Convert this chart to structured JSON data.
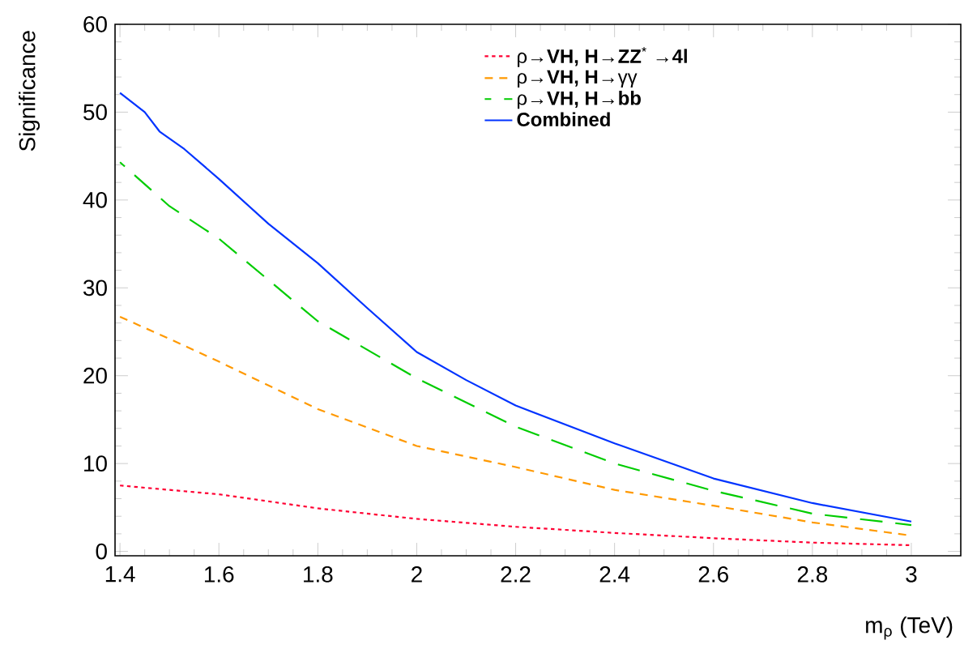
{
  "chart_data": {
    "type": "line",
    "xlabel": "m$_{ρ}$ (TeV)",
    "ylabel": "Significance",
    "xlim": [
      1.39,
      3.1
    ],
    "ylim": [
      -0.5,
      60
    ],
    "xticks": [
      1.4,
      1.6,
      1.8,
      2,
      2.2,
      2.4,
      2.6,
      2.8,
      3
    ],
    "yticks": [
      0,
      10,
      20,
      30,
      40,
      50,
      60
    ],
    "legend": "top right",
    "marker": "none",
    "grid": false,
    "x": [
      1.4,
      1.5,
      1.6,
      1.8,
      2.0,
      2.2,
      2.4,
      2.6,
      2.8,
      3.0
    ],
    "series": [
      {
        "name": "ρ→**VH, H**→**ZZ**$^{*}$ →**4l**",
        "color": "#ff0033",
        "line_style": "dotted",
        "values": [
          7.5,
          7.0,
          6.5,
          4.9,
          3.7,
          2.8,
          2.1,
          1.5,
          1.0,
          0.7
        ]
      },
      {
        "name": "ρ→**VH, H**→γγ",
        "color": "#ff9900",
        "line_style": "dashed",
        "values": [
          26.7,
          24.2,
          21.6,
          16.2,
          12.0,
          9.6,
          7.0,
          5.2,
          3.3,
          1.8
        ]
      },
      {
        "name": "ρ→**VH, H**→**bb**",
        "color": "#00cc00",
        "line_style": "longdashed",
        "values": [
          44.3,
          39.3,
          35.6,
          26.2,
          19.7,
          14.2,
          10.0,
          6.9,
          4.3,
          3.0
        ]
      },
      {
        "name": "**Combined**",
        "color": "#0033ff",
        "line_style": "solid",
        "x": [
          1.4,
          1.45,
          1.48,
          1.53,
          1.6,
          1.7,
          1.8,
          1.9,
          2.0,
          2.1,
          2.2,
          2.4,
          2.6,
          2.8,
          3.0
        ],
        "values": [
          52.2,
          50.0,
          47.8,
          45.8,
          42.4,
          37.3,
          32.8,
          27.7,
          22.7,
          19.5,
          16.6,
          12.3,
          8.3,
          5.5,
          3.4
        ]
      }
    ]
  }
}
